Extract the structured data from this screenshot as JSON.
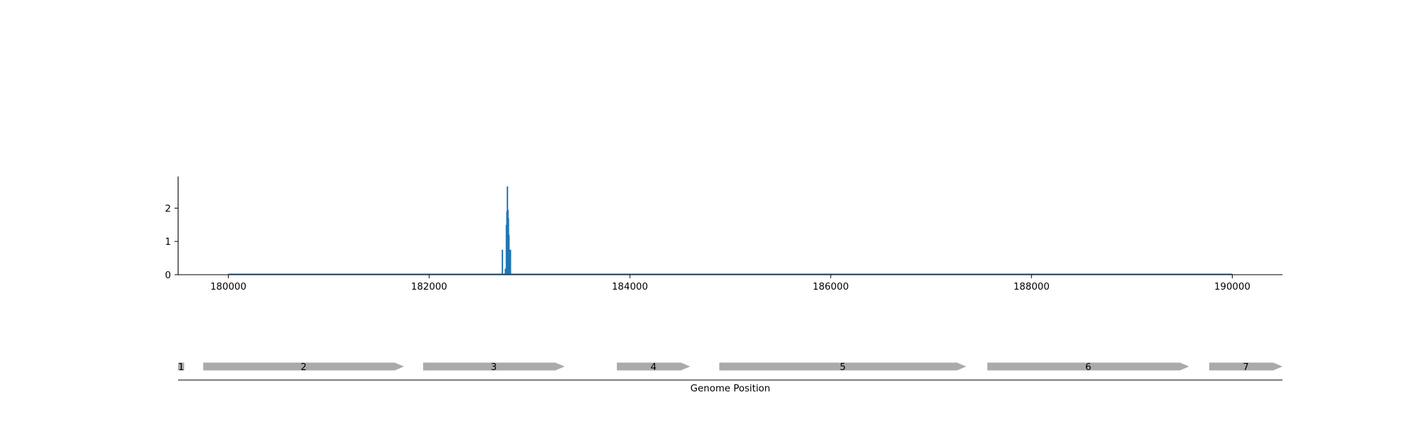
{
  "chart_data": [
    {
      "type": "line",
      "title": "",
      "xlabel": "",
      "ylabel": "",
      "xlim": [
        179500,
        190500
      ],
      "ylim": [
        0,
        2.95
      ],
      "xticks": [
        180000,
        182000,
        184000,
        186000,
        188000,
        190000
      ],
      "xtick_labels": [
        "180000",
        "182000",
        "184000",
        "186000",
        "188000",
        "190000"
      ],
      "yticks": [
        0,
        1,
        2
      ],
      "ytick_labels": [
        "0",
        "1",
        "2"
      ],
      "color": "#1f77b4",
      "grid": false,
      "baseline": [
        [
          180000,
          0
        ],
        [
          190000,
          0
        ]
      ],
      "spikes": [
        {
          "x": 182730,
          "y": 0.75
        },
        {
          "x": 182760,
          "y": 0.18
        },
        {
          "x": 182770,
          "y": 1.5
        },
        {
          "x": 182775,
          "y": 1.9
        },
        {
          "x": 182780,
          "y": 2.65
        },
        {
          "x": 182785,
          "y": 1.95
        },
        {
          "x": 182790,
          "y": 1.7
        },
        {
          "x": 182795,
          "y": 1.2
        },
        {
          "x": 182800,
          "y": 0.75
        },
        {
          "x": 182810,
          "y": 0.75
        }
      ]
    },
    {
      "type": "gene-track",
      "xlabel": "Genome Position",
      "color": "#aaaaaa",
      "genes": [
        {
          "label": "1",
          "start": 179500,
          "end": 179560,
          "strand": "+"
        },
        {
          "label": "2",
          "start": 179750,
          "end": 181750,
          "strand": "+"
        },
        {
          "label": "3",
          "start": 181940,
          "end": 183350,
          "strand": "+"
        },
        {
          "label": "4",
          "start": 183870,
          "end": 184600,
          "strand": "+"
        },
        {
          "label": "5",
          "start": 184890,
          "end": 187350,
          "strand": "+"
        },
        {
          "label": "6",
          "start": 187560,
          "end": 189570,
          "strand": "+"
        },
        {
          "label": "7",
          "start": 189770,
          "end": 190500,
          "strand": "+"
        }
      ]
    }
  ]
}
